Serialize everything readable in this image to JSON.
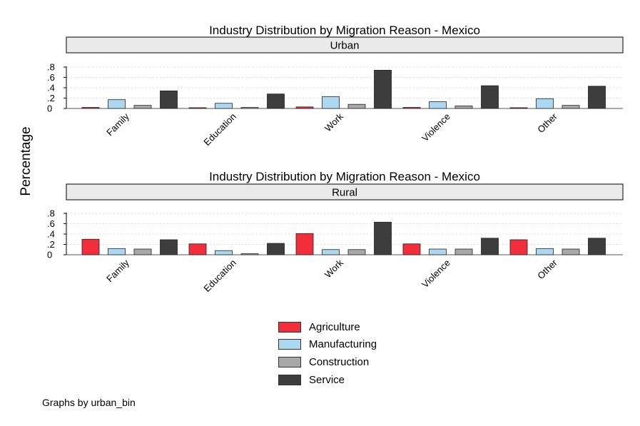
{
  "colors": {
    "agriculture": "#f22e3c",
    "manufacturing": "#acd7f1",
    "construction": "#a8a8a8",
    "service": "#3d3d3d",
    "strip": "#eaeaea",
    "grid": "#d9d9d9"
  },
  "chart_data": {
    "type": "bar",
    "ylabel": "Percentage",
    "categories": [
      "Family",
      "Education",
      "Work",
      "Violence",
      "Other"
    ],
    "ytick_labels": [
      ".8",
      ".6",
      ".4",
      ".2",
      "0"
    ],
    "ylim": [
      0,
      0.8
    ],
    "grid": true,
    "legend_position": "bottom",
    "note": "Graphs by urban_bin",
    "panels": [
      {
        "title": "Industry Distribution by Migration Reason - Mexico",
        "strip": "Urban",
        "series": [
          {
            "name": "Agriculture",
            "values": [
              0.02,
              0.015,
              0.03,
              0.02,
              0.015
            ]
          },
          {
            "name": "Manufacturing",
            "values": [
              0.17,
              0.1,
              0.23,
              0.13,
              0.19
            ]
          },
          {
            "name": "Construction",
            "values": [
              0.06,
              0.02,
              0.08,
              0.05,
              0.06
            ]
          },
          {
            "name": "Service",
            "values": [
              0.34,
              0.28,
              0.74,
              0.44,
              0.43
            ]
          }
        ]
      },
      {
        "title": "Industry Distribution by Migration Reason - Mexico",
        "strip": "Rural",
        "series": [
          {
            "name": "Agriculture",
            "values": [
              0.3,
              0.21,
              0.41,
              0.21,
              0.29
            ]
          },
          {
            "name": "Manufacturing",
            "values": [
              0.12,
              0.08,
              0.1,
              0.11,
              0.12
            ]
          },
          {
            "name": "Construction",
            "values": [
              0.11,
              0.02,
              0.1,
              0.11,
              0.11
            ]
          },
          {
            "name": "Service",
            "values": [
              0.29,
              0.22,
              0.63,
              0.32,
              0.32
            ]
          }
        ]
      }
    ]
  }
}
